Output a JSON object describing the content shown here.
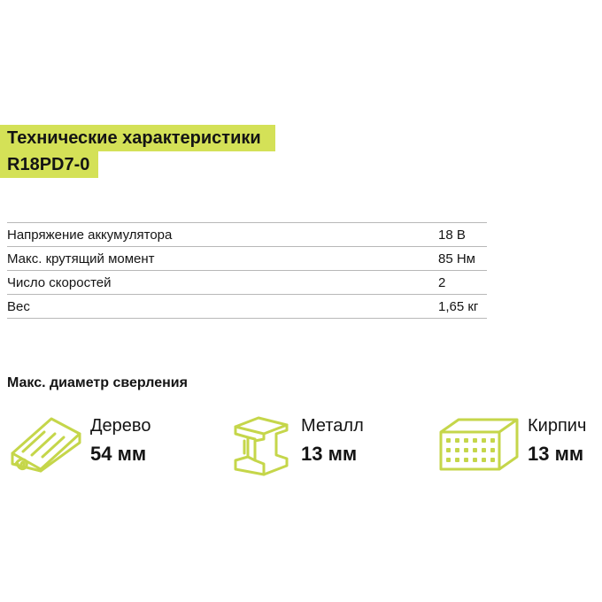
{
  "title": {
    "line1": "Технические характеристики",
    "line2": "R18PD7-0"
  },
  "specs": [
    {
      "label": "Напряжение аккумулятора",
      "value": "18 В"
    },
    {
      "label": "Макс. крутящий момент",
      "value": "85 Нм"
    },
    {
      "label": "Число скоростей",
      "value": "2"
    },
    {
      "label": "Вес",
      "value": "1,65 кг"
    }
  ],
  "drill": {
    "heading": "Макс. диаметр сверления",
    "materials": [
      {
        "name": "Дерево",
        "value": "54 мм",
        "icon": "wood-plank-icon"
      },
      {
        "name": "Металл",
        "value": "13 мм",
        "icon": "steel-beam-icon"
      },
      {
        "name": "Кирпич",
        "value": "13 мм",
        "icon": "brick-icon"
      }
    ]
  },
  "colors": {
    "accent": "#d4e157",
    "text": "#141414",
    "divider": "#b8b8b8"
  }
}
